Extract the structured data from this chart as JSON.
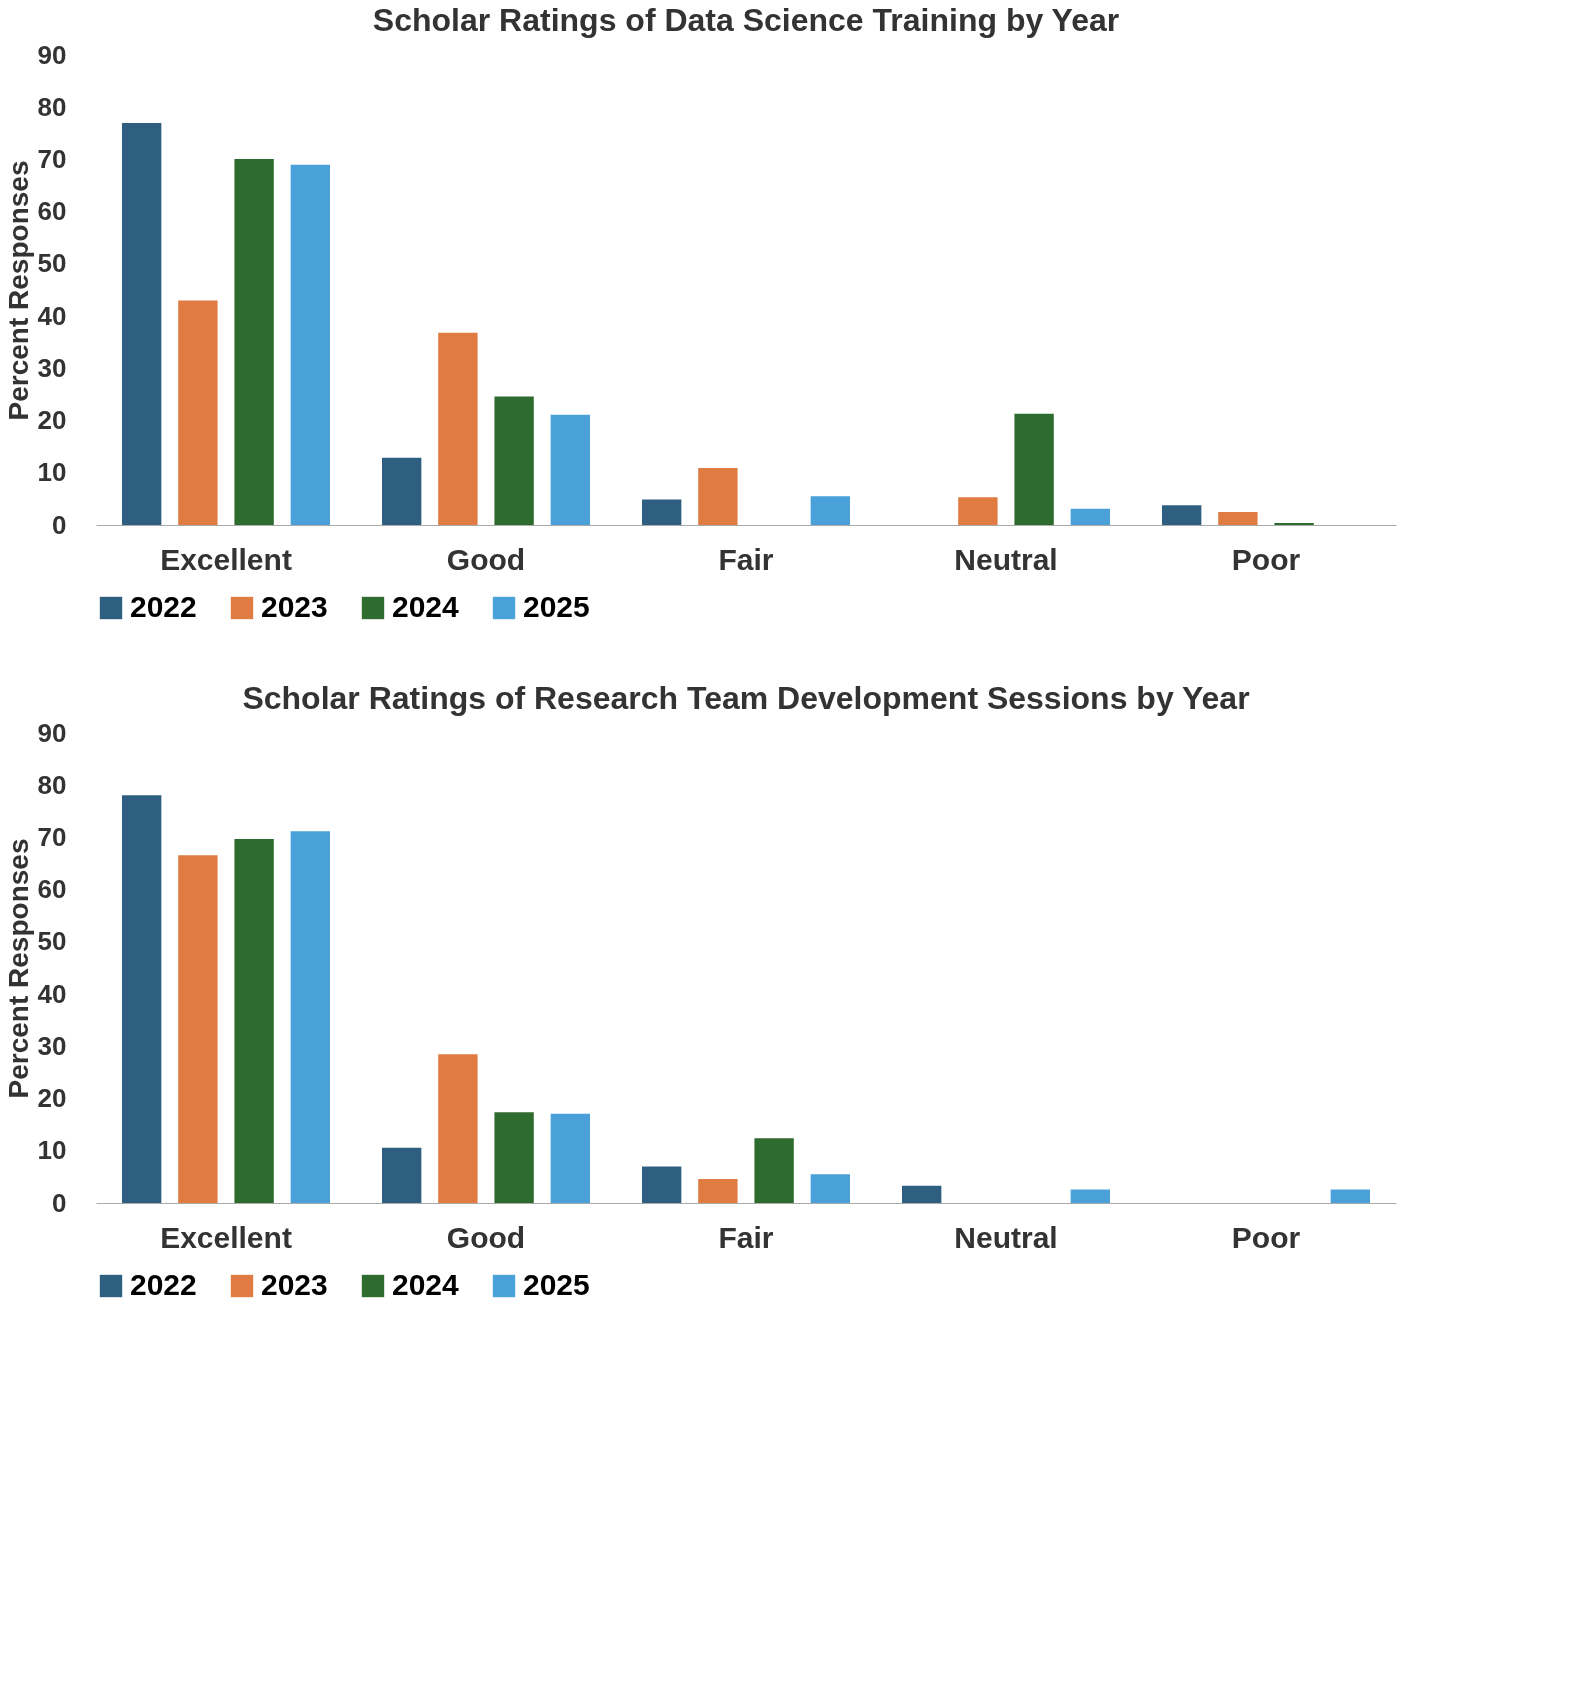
{
  "chart_data": [
    {
      "type": "bar",
      "title": "Scholar Ratings of Data Science Training by Year",
      "ylabel": "Percent Responses",
      "categories": [
        "Excellent",
        "Good",
        "Fair",
        "Neutral",
        "Poor"
      ],
      "ylim": [
        0,
        90
      ],
      "yticks": [
        0,
        10,
        20,
        30,
        40,
        50,
        60,
        70,
        80,
        90
      ],
      "grid": false,
      "legend": "bottom",
      "series": [
        {
          "name": "2022",
          "color": "#2e5f80",
          "values": [
            77,
            12.9,
            4.9,
            0,
            3.8
          ]
        },
        {
          "name": "2023",
          "color": "#e07b42",
          "values": [
            43,
            36.8,
            10.9,
            5.3,
            2.5
          ]
        },
        {
          "name": "2024",
          "color": "#2e6b2e",
          "values": [
            70.1,
            24.6,
            0,
            21.3,
            0.4
          ]
        },
        {
          "name": "2025",
          "color": "#4aa0d8",
          "values": [
            69,
            21.1,
            5.5,
            3.1,
            0
          ]
        }
      ]
    },
    {
      "type": "bar",
      "title": "Scholar Ratings of Research Team Development Sessions by Year",
      "ylabel": "Percent Responses",
      "categories": [
        "Excellent",
        "Good",
        "Fair",
        "Neutral",
        "Poor"
      ],
      "ylim": [
        0,
        90
      ],
      "yticks": [
        0,
        10,
        20,
        30,
        40,
        50,
        60,
        70,
        80,
        90
      ],
      "grid": false,
      "legend": "bottom",
      "series": [
        {
          "name": "2022",
          "color": "#2e5f80",
          "values": [
            78.1,
            10.6,
            7.0,
            3.3,
            0
          ]
        },
        {
          "name": "2023",
          "color": "#e07b42",
          "values": [
            66.6,
            28.5,
            4.6,
            0,
            0
          ]
        },
        {
          "name": "2024",
          "color": "#2e6b2e",
          "values": [
            69.7,
            17.4,
            12.4,
            0,
            0
          ]
        },
        {
          "name": "2025",
          "color": "#4aa0d8",
          "values": [
            71.2,
            17.1,
            5.5,
            2.6,
            2.6
          ]
        }
      ]
    }
  ]
}
